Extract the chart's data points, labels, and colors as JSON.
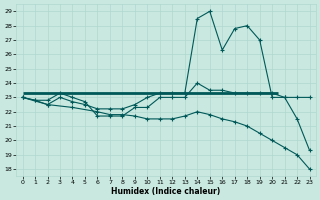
{
  "xlabel": "Humidex (Indice chaleur)",
  "xlim": [
    -0.5,
    23.5
  ],
  "ylim": [
    17.5,
    29.5
  ],
  "yticks": [
    18,
    19,
    20,
    21,
    22,
    23,
    24,
    25,
    26,
    27,
    28,
    29
  ],
  "xticks": [
    0,
    1,
    2,
    3,
    4,
    5,
    6,
    7,
    8,
    9,
    10,
    11,
    12,
    13,
    14,
    15,
    16,
    17,
    18,
    19,
    20,
    21,
    22,
    23
  ],
  "bg_color": "#c8e8e0",
  "grid_color": "#b0d8d0",
  "line_color": "#005858",
  "series1_x": [
    0,
    1,
    2,
    3,
    4,
    5,
    6,
    7,
    8,
    9,
    10,
    11,
    12,
    13,
    14,
    15,
    16,
    17,
    18,
    19,
    20,
    21,
    22,
    23
  ],
  "series1_y": [
    23.0,
    22.8,
    22.8,
    23.3,
    23.0,
    22.7,
    21.7,
    21.7,
    21.7,
    22.3,
    22.3,
    23.0,
    23.0,
    23.0,
    24.0,
    23.5,
    23.5,
    23.3,
    23.3,
    23.3,
    23.3,
    23.0,
    23.0,
    23.0
  ],
  "series2_x": [
    0,
    1,
    2,
    3,
    4,
    5,
    6,
    7,
    8,
    9,
    10,
    11,
    12,
    13,
    14,
    15,
    16,
    17,
    18,
    19,
    20,
    21,
    22,
    23
  ],
  "series2_y": [
    23.0,
    22.8,
    22.5,
    23.0,
    22.7,
    22.5,
    22.2,
    22.2,
    22.2,
    22.5,
    23.0,
    23.3,
    23.3,
    23.3,
    28.5,
    29.0,
    26.3,
    27.8,
    28.0,
    27.0,
    23.0,
    23.0,
    21.5,
    19.3
  ],
  "series3_x": [
    0,
    2,
    4,
    6,
    7,
    8,
    9,
    10,
    11,
    12,
    13,
    14,
    15,
    16,
    17,
    18,
    19,
    20,
    21,
    22,
    23
  ],
  "series3_y": [
    23.0,
    22.5,
    22.3,
    22.0,
    21.8,
    21.8,
    21.7,
    21.5,
    21.5,
    21.5,
    21.7,
    22.0,
    21.8,
    21.5,
    21.3,
    21.0,
    20.5,
    20.0,
    19.5,
    19.0,
    18.0
  ],
  "hline_y": 23.3,
  "hline_x_start": 0,
  "hline_x_end": 20.5
}
